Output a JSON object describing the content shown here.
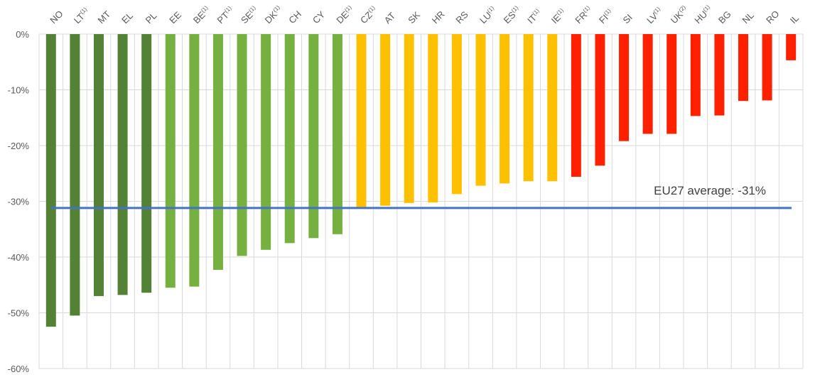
{
  "chart_data": {
    "type": "bar",
    "categories": [
      {
        "code": "NO",
        "note": ""
      },
      {
        "code": "LT",
        "note": "(1)"
      },
      {
        "code": "MT",
        "note": ""
      },
      {
        "code": "EL",
        "note": ""
      },
      {
        "code": "PL",
        "note": ""
      },
      {
        "code": "EE",
        "note": ""
      },
      {
        "code": "BE",
        "note": "(1)"
      },
      {
        "code": "PT",
        "note": "(1)"
      },
      {
        "code": "SE",
        "note": "(1)"
      },
      {
        "code": "DK",
        "note": "(1)"
      },
      {
        "code": "CH",
        "note": ""
      },
      {
        "code": "CY",
        "note": ""
      },
      {
        "code": "DE",
        "note": "(1)"
      },
      {
        "code": "CZ",
        "note": "(1)"
      },
      {
        "code": "AT",
        "note": ""
      },
      {
        "code": "SK",
        "note": ""
      },
      {
        "code": "HR",
        "note": ""
      },
      {
        "code": "RS",
        "note": ""
      },
      {
        "code": "LU",
        "note": "(1)"
      },
      {
        "code": "ES",
        "note": "(1)"
      },
      {
        "code": "IT",
        "note": "(1)"
      },
      {
        "code": "IE",
        "note": "(1)"
      },
      {
        "code": "FR",
        "note": "(1)"
      },
      {
        "code": "FI",
        "note": "(1)"
      },
      {
        "code": "SI",
        "note": ""
      },
      {
        "code": "LV",
        "note": "(1)"
      },
      {
        "code": "UK",
        "note": "(2)"
      },
      {
        "code": "HU",
        "note": "(1)"
      },
      {
        "code": "BG",
        "note": ""
      },
      {
        "code": "NL",
        "note": ""
      },
      {
        "code": "RO",
        "note": ""
      },
      {
        "code": "IL",
        "note": ""
      }
    ],
    "values": [
      -52.5,
      -50.5,
      -47.0,
      -46.8,
      -46.4,
      -45.5,
      -45.3,
      -42.3,
      -39.8,
      -38.7,
      -37.5,
      -36.6,
      -35.9,
      -31.2,
      -30.8,
      -30.3,
      -30.2,
      -28.7,
      -27.2,
      -26.8,
      -26.4,
      -26.4,
      -25.6,
      -23.6,
      -19.2,
      -17.9,
      -17.9,
      -14.7,
      -14.6,
      -12.0,
      -11.9,
      -4.7
    ],
    "bar_colors": [
      "#538135",
      "#538135",
      "#538135",
      "#538135",
      "#538135",
      "#76b041",
      "#76b041",
      "#76b041",
      "#76b041",
      "#76b041",
      "#76b041",
      "#76b041",
      "#76b041",
      "#ffc000",
      "#ffc000",
      "#ffc000",
      "#ffc000",
      "#ffc000",
      "#ffc000",
      "#ffc000",
      "#ffc000",
      "#ffc000",
      "#ff2000",
      "#ff2000",
      "#ff2000",
      "#ff2000",
      "#ff2000",
      "#ff2000",
      "#ff2000",
      "#ff2000",
      "#ff2000",
      "#ff2000"
    ],
    "y_axis": {
      "min": -60,
      "max": 0,
      "step": 10,
      "tick_labels": [
        "0%",
        "-10%",
        "-20%",
        "-30%",
        "-40%",
        "-50%",
        "-60%"
      ]
    },
    "reference_line": {
      "value": -31.2,
      "label": "EU27 average: -31%",
      "color": "#4472c4"
    },
    "category_axis_position": "top",
    "grid": true,
    "title": "",
    "xlabel": "",
    "ylabel": ""
  }
}
